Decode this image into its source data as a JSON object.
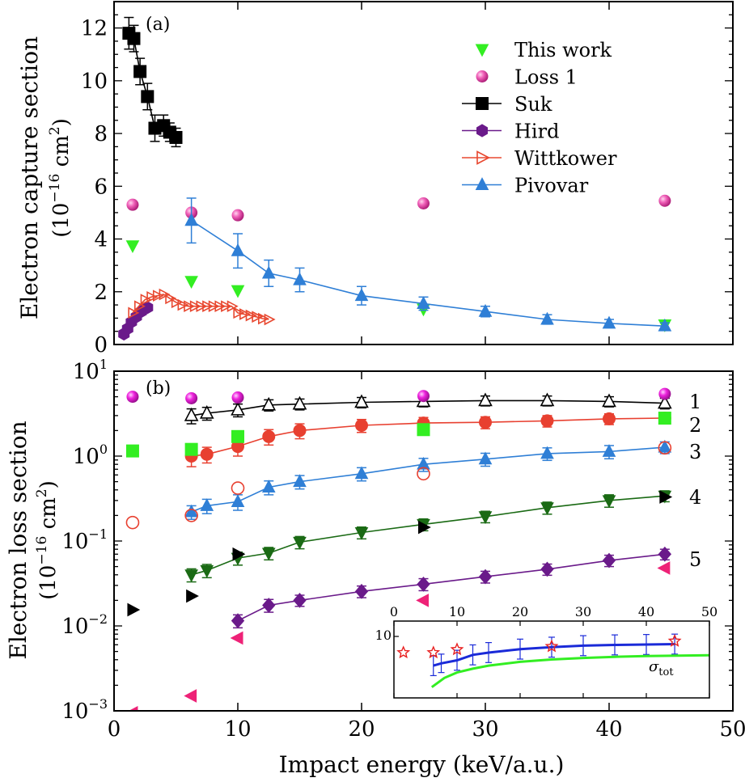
{
  "chart_data": [
    {
      "type": "line",
      "panel_label": "(a)",
      "xlabel": "Impact energy (keV/a.u.)",
      "ylabel_line1": "Electron capture section",
      "ylabel_line2": "(10",
      "ylabel_exp": "−16",
      "ylabel_unit": " cm",
      "ylabel_unit_exp": "2",
      "ylabel_close": ")",
      "xlim": [
        0,
        50
      ],
      "ylim": [
        0,
        13
      ],
      "xticks": [
        0,
        10,
        20,
        30,
        40,
        50
      ],
      "yticks": [
        0,
        2,
        4,
        6,
        8,
        10,
        12
      ],
      "legend_position": "top-right",
      "series": [
        {
          "name": "This work",
          "marker": "triangle-down",
          "color": "#33ee22",
          "line": false,
          "x": [
            1.5,
            6.25,
            10,
            25,
            44.5
          ],
          "y": [
            3.75,
            2.4,
            2.05,
            1.35,
            0.75
          ],
          "err": []
        },
        {
          "name": "Loss 1",
          "marker": "sphere",
          "color": "#ee44aa",
          "line": false,
          "x": [
            1.5,
            6.25,
            10,
            25,
            44.5
          ],
          "y": [
            5.3,
            5.0,
            4.9,
            5.35,
            5.45
          ],
          "err": []
        },
        {
          "name": "Suk",
          "marker": "square",
          "color": "#000000",
          "line": true,
          "x": [
            1.2,
            1.6,
            2.1,
            2.7,
            3.3,
            4.0,
            4.5,
            5.0
          ],
          "y": [
            11.8,
            11.6,
            10.35,
            9.4,
            8.2,
            8.3,
            8.05,
            7.85
          ],
          "err": [
            0.6,
            0.5,
            0.5,
            0.5,
            0.5,
            0.4,
            0.35,
            0.35
          ]
        },
        {
          "name": "Hird",
          "marker": "hexagon",
          "color": "#6a1a8a",
          "line": true,
          "x": [
            0.8,
            1.1,
            1.4,
            1.8,
            2.2,
            2.7
          ],
          "y": [
            0.4,
            0.6,
            0.85,
            1.05,
            1.25,
            1.4
          ],
          "err": []
        },
        {
          "name": "Wittkower",
          "marker": "triangle-right-open",
          "color": "#e84830",
          "line": true,
          "x": [
            1.5,
            2.0,
            2.5,
            3.0,
            3.5,
            4.0,
            4.5,
            5.0,
            5.5,
            6.0,
            6.5,
            7.0,
            7.5,
            8.0,
            8.5,
            9.0,
            9.5,
            10.0,
            10.5,
            11.0,
            11.5,
            12.0,
            12.5
          ],
          "y": [
            1.2,
            1.45,
            1.7,
            1.8,
            1.85,
            1.9,
            1.75,
            1.6,
            1.5,
            1.45,
            1.45,
            1.45,
            1.45,
            1.45,
            1.45,
            1.45,
            1.45,
            1.2,
            1.15,
            1.1,
            1.05,
            0.98,
            0.95
          ],
          "err": []
        },
        {
          "name": "Pivovar",
          "marker": "triangle-up",
          "color": "#2f7fd6",
          "line": true,
          "x": [
            6.25,
            10,
            12.5,
            15,
            20,
            25,
            30,
            35,
            40,
            44.5
          ],
          "y": [
            4.7,
            3.55,
            2.7,
            2.45,
            1.85,
            1.55,
            1.25,
            0.95,
            0.8,
            0.7
          ],
          "err": [
            0.85,
            0.65,
            0.5,
            0.45,
            0.35,
            0.25,
            0.2,
            0.18,
            0.15,
            0.12
          ]
        }
      ]
    },
    {
      "type": "line",
      "panel_label": "(b)",
      "xlabel": "Impact energy (keV/a.u.)",
      "ylabel_line1": "Electron loss section",
      "ylabel_line2": "(10",
      "ylabel_exp": "−16",
      "ylabel_unit": " cm",
      "ylabel_unit_exp": "2",
      "ylabel_close": ")",
      "yscale": "log",
      "xlim": [
        0,
        50
      ],
      "ylim": [
        0.001,
        10
      ],
      "xticks": [
        0,
        10,
        20,
        30,
        40,
        50
      ],
      "ytick_labels": [
        {
          "base": "10",
          "exp": "1"
        },
        {
          "base": "10",
          "exp": "0"
        },
        {
          "base": "10",
          "exp": "−1"
        },
        {
          "base": "10",
          "exp": "−2"
        },
        {
          "base": "10",
          "exp": "−3"
        }
      ],
      "ytick_values": [
        10,
        1,
        0.1,
        0.01,
        0.001
      ],
      "curve_labels": [
        "1",
        "2",
        "3",
        "4",
        "5"
      ],
      "series": [
        {
          "name": "1",
          "marker": "triangle-up-open",
          "color": "#000000",
          "line": true,
          "x": [
            6.25,
            7.5,
            10,
            12.5,
            15,
            20,
            25,
            30,
            35,
            40,
            44.5
          ],
          "y": [
            3.0,
            3.2,
            3.5,
            4.0,
            4.1,
            4.3,
            4.4,
            4.5,
            4.5,
            4.4,
            4.2
          ],
          "err": [
            0.6,
            0.55,
            0.6,
            0.6,
            0.6,
            0.6,
            0.6,
            0.6,
            0.6,
            0.6,
            0.6
          ]
        },
        {
          "name": "2",
          "marker": "circle",
          "color": "#e84030",
          "line": true,
          "x": [
            6.25,
            7.5,
            10,
            12.5,
            15,
            20,
            25,
            30,
            35,
            40,
            44.5
          ],
          "y": [
            1.0,
            1.05,
            1.3,
            1.7,
            2.0,
            2.3,
            2.45,
            2.5,
            2.6,
            2.75,
            2.8
          ],
          "err": [
            0.25,
            0.22,
            0.3,
            0.35,
            0.4,
            0.4,
            0.4,
            0.4,
            0.4,
            0.4,
            0.4
          ]
        },
        {
          "name": "3",
          "marker": "triangle-up",
          "color": "#2f7fd6",
          "line": true,
          "x": [
            6.25,
            7.5,
            10,
            12.5,
            15,
            20,
            25,
            30,
            35,
            40,
            44.5
          ],
          "y": [
            0.22,
            0.26,
            0.29,
            0.43,
            0.5,
            0.62,
            0.8,
            0.92,
            1.07,
            1.13,
            1.27
          ],
          "err": [
            0.04,
            0.05,
            0.06,
            0.08,
            0.09,
            0.11,
            0.14,
            0.16,
            0.18,
            0.2,
            0.2
          ]
        },
        {
          "name": "4",
          "marker": "triangle-down",
          "color": "#1a6a14",
          "line": true,
          "x": [
            6.25,
            7.5,
            10,
            12.5,
            15,
            20,
            25,
            30,
            35,
            40,
            44.5
          ],
          "y": [
            0.04,
            0.045,
            0.063,
            0.072,
            0.097,
            0.126,
            0.157,
            0.194,
            0.247,
            0.3,
            0.34
          ],
          "err": [
            0.007,
            0.008,
            0.011,
            0.012,
            0.016,
            0.02,
            0.025,
            0.03,
            0.04,
            0.05,
            0.05
          ]
        },
        {
          "name": "5",
          "marker": "diamond",
          "color": "#6a1a8a",
          "line": true,
          "x": [
            10,
            12.5,
            15,
            20,
            25,
            30,
            35,
            40,
            44.5
          ],
          "y": [
            0.0115,
            0.0175,
            0.02,
            0.0255,
            0.031,
            0.038,
            0.0465,
            0.059,
            0.07
          ],
          "err": [
            0.002,
            0.003,
            0.003,
            0.004,
            0.005,
            0.006,
            0.007,
            0.009,
            0.01
          ]
        },
        {
          "name": "loss-total-spheres",
          "marker": "sphere",
          "color": "#ee22dd",
          "line": false,
          "x": [
            1.5,
            6.25,
            10,
            25,
            44.5
          ],
          "y": [
            5.0,
            4.8,
            4.9,
            5.1,
            5.4
          ],
          "err": []
        },
        {
          "name": "green-squares",
          "marker": "square",
          "color": "#33ee22",
          "line": false,
          "x": [
            1.5,
            6.25,
            10,
            25,
            44.5
          ],
          "y": [
            1.15,
            1.2,
            1.7,
            2.05,
            2.8
          ],
          "err": []
        },
        {
          "name": "open-circles",
          "marker": "circle-open",
          "color": "#e84030",
          "line": false,
          "x": [
            1.5,
            6.25,
            10,
            25,
            44.5
          ],
          "y": [
            0.165,
            0.2,
            0.42,
            0.62,
            1.25
          ],
          "err": []
        },
        {
          "name": "black-right-triangles",
          "marker": "triangle-right",
          "color": "#000000",
          "line": false,
          "x": [
            1.5,
            6.25,
            10,
            25,
            44.5
          ],
          "y": [
            0.0155,
            0.0225,
            0.07,
            0.145,
            0.33
          ],
          "err": []
        },
        {
          "name": "pink-left-triangles",
          "marker": "triangle-left",
          "color": "#ee2277",
          "line": false,
          "x": [
            1.5,
            6.25,
            10,
            25,
            44.5
          ],
          "y": [
            0.00095,
            0.0015,
            0.0072,
            0.02,
            0.048
          ],
          "err": []
        }
      ],
      "inset": {
        "type": "line",
        "xlim": [
          0,
          50
        ],
        "xticks": [
          0,
          10,
          20,
          30,
          40,
          50
        ],
        "ylim": [
          2,
          12
        ],
        "ytick_label": "10",
        "ytick_value": 10,
        "annotation": "σ",
        "annotation_sub": "tot",
        "series": [
          {
            "name": "blue-errors",
            "color": "#1a2ad8",
            "line": true,
            "x": [
              6.25,
              7.5,
              10,
              12.5,
              15,
              20,
              25,
              30,
              35,
              40,
              44.5
            ],
            "y": [
              6.2,
              6.5,
              6.9,
              7.6,
              7.9,
              8.35,
              8.6,
              8.8,
              8.9,
              8.95,
              9.0
            ],
            "err": [
              1.3,
              1.2,
              1.3,
              1.3,
              1.3,
              1.3,
              1.3,
              1.3,
              1.3,
              1.3,
              1.3
            ]
          },
          {
            "name": "green-curve",
            "color": "#33ee22",
            "line": true,
            "x": [
              6.0,
              8,
              10,
              12.5,
              15,
              20,
              25,
              30,
              35,
              40,
              45,
              50
            ],
            "y": [
              3.4,
              4.6,
              5.3,
              5.8,
              6.2,
              6.7,
              7.0,
              7.2,
              7.35,
              7.45,
              7.5,
              7.55
            ],
            "err": []
          },
          {
            "name": "red-stars",
            "color": "#e82020",
            "marker": "star-open",
            "line": false,
            "x": [
              1.5,
              6.25,
              10,
              25,
              44.5
            ],
            "y": [
              7.9,
              7.9,
              8.3,
              8.7,
              9.4
            ],
            "err": []
          }
        ]
      }
    }
  ]
}
